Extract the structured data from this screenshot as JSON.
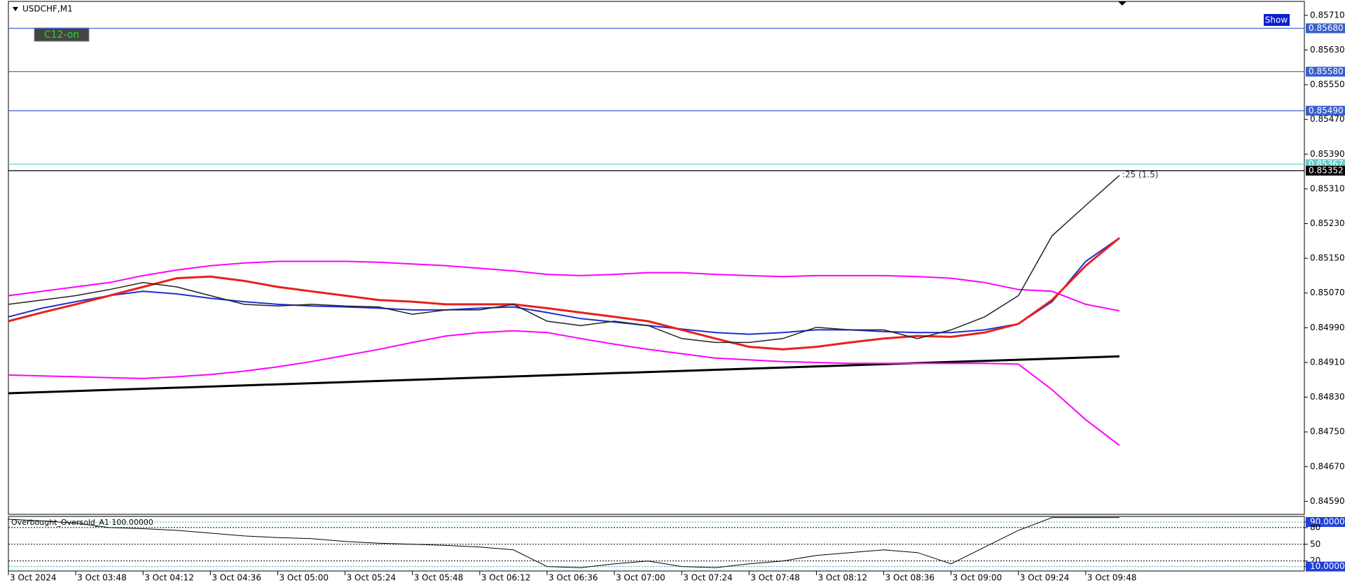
{
  "ui": {
    "button_c12": "C12-on",
    "button_show": "Show"
  },
  "chart_data": [
    {
      "type": "line",
      "title": "USDCHF,M1",
      "categories": [
        "3 Oct 2024",
        null,
        "3 Oct 03:48",
        null,
        "3 Oct 04:12",
        null,
        "3 Oct 04:36",
        null,
        "3 Oct 05:00",
        null,
        "3 Oct 05:24",
        null,
        "3 Oct 05:48",
        null,
        "3 Oct 06:12",
        null,
        "3 Oct 06:36",
        null,
        "3 Oct 07:00",
        null,
        "3 Oct 07:24",
        null,
        "3 Oct 07:48",
        null,
        "3 Oct 08:12",
        null,
        "3 Oct 08:36",
        null,
        "3 Oct 09:00",
        null,
        "3 Oct 09:24",
        null,
        "3 Oct 09:48",
        null
      ],
      "ylim": [
        0.8456,
        0.85742
      ],
      "yticks": [
        {
          "value": 0.8571,
          "label": "0.85710"
        },
        {
          "value": 0.8563,
          "label": "0.85630"
        },
        {
          "value": 0.8555,
          "label": "0.85550"
        },
        {
          "value": 0.8547,
          "label": "0.85470"
        },
        {
          "value": 0.8539,
          "label": "0.85390"
        },
        {
          "value": 0.8531,
          "label": "0.85310"
        },
        {
          "value": 0.8523,
          "label": "0.85230"
        },
        {
          "value": 0.8515,
          "label": "0.85150"
        },
        {
          "value": 0.8507,
          "label": "0.85070"
        },
        {
          "value": 0.8499,
          "label": "0.84990"
        },
        {
          "value": 0.8491,
          "label": "0.84910"
        },
        {
          "value": 0.8483,
          "label": "0.84830"
        },
        {
          "value": 0.8475,
          "label": "0.84750"
        },
        {
          "value": 0.8467,
          "label": "0.84670"
        },
        {
          "value": 0.8459,
          "label": "0.84590"
        }
      ],
      "levels": [
        {
          "value": 0.8568,
          "label": "0.85680",
          "color": "#3a5fcd"
        },
        {
          "value": 0.8558,
          "label": "0.85580",
          "color": "#3a5fcd"
        },
        {
          "value": 0.8549,
          "label": "0.85490",
          "color": "#3a5fcd"
        },
        {
          "value": 0.85367,
          "label": "0.85367",
          "color": "#66cccc"
        },
        {
          "value": 0.85352,
          "label": "0.85352",
          "color": "#000000"
        }
      ],
      "annotation": ":25 (1.5)",
      "trend_line": [
        0.84839,
        0.84924
      ],
      "series": [
        {
          "color": "#ff00ff",
          "width": 2,
          "values": [
            0.85064,
            0.85074,
            0.85084,
            0.85094,
            0.8511,
            0.85123,
            0.85133,
            0.85139,
            0.85143,
            0.85143,
            0.85143,
            0.85141,
            0.85137,
            0.85133,
            0.85127,
            0.85121,
            0.85113,
            0.8511,
            0.85113,
            0.85117,
            0.85117,
            0.85113,
            0.8511,
            0.85108,
            0.8511,
            0.8511,
            0.8511,
            0.85108,
            0.85104,
            0.85094,
            0.85078,
            0.85074,
            0.85044,
            0.85029
          ]
        },
        {
          "color": "#ff00ff",
          "width": 2,
          "values": [
            0.84881,
            0.84879,
            0.84877,
            0.84875,
            0.84873,
            0.84877,
            0.84882,
            0.8489,
            0.849,
            0.84912,
            0.84926,
            0.8494,
            0.84956,
            0.84971,
            0.84979,
            0.84983,
            0.84979,
            0.84965,
            0.84952,
            0.8494,
            0.8493,
            0.8492,
            0.84916,
            0.84912,
            0.8491,
            0.84908,
            0.84908,
            0.84908,
            0.84908,
            0.84908,
            0.84906,
            0.84847,
            0.84778,
            0.84719
          ]
        },
        {
          "color": "#1f2fd0",
          "width": 2,
          "values": [
            0.85015,
            0.85035,
            0.8505,
            0.85064,
            0.85074,
            0.85068,
            0.85058,
            0.8505,
            0.85044,
            0.8504,
            0.85038,
            0.85035,
            0.85031,
            0.85031,
            0.85035,
            0.85038,
            0.85025,
            0.85011,
            0.85003,
            0.84995,
            0.84987,
            0.84979,
            0.84975,
            0.84979,
            0.84985,
            0.84985,
            0.84981,
            0.84979,
            0.84979,
            0.84985,
            0.84999,
            0.8505,
            0.85143,
            0.85197
          ]
        },
        {
          "color": "#e8201c",
          "width": 3,
          "values": [
            0.85005,
            0.85025,
            0.85044,
            0.85064,
            0.85084,
            0.85104,
            0.85108,
            0.85098,
            0.85084,
            0.85074,
            0.85064,
            0.85054,
            0.8505,
            0.85044,
            0.85044,
            0.85044,
            0.85035,
            0.85025,
            0.85015,
            0.85005,
            0.84985,
            0.84965,
            0.84946,
            0.8494,
            0.84946,
            0.84956,
            0.84965,
            0.84971,
            0.84969,
            0.84979,
            0.84999,
            0.85054,
            0.85133,
            0.85197
          ]
        },
        {
          "color": "#222222",
          "width": 1.5,
          "values": [
            0.85044,
            0.85054,
            0.85064,
            0.85078,
            0.85094,
            0.85084,
            0.85064,
            0.85044,
            0.8504,
            0.85044,
            0.8504,
            0.85038,
            0.85021,
            0.85031,
            0.85031,
            0.85044,
            0.85005,
            0.84995,
            0.85005,
            0.84995,
            0.84965,
            0.84956,
            0.84956,
            0.84965,
            0.84991,
            0.84985,
            0.84985,
            0.84965,
            0.84985,
            0.85015,
            0.85064,
            0.85202,
            0.85272,
            0.85341
          ]
        }
      ]
    },
    {
      "type": "line",
      "title": "Overbought_Oversold_A1 100.00000",
      "ylim": [
        2,
        100
      ],
      "yticks": [
        {
          "value": 90,
          "label": "90.00000"
        },
        80,
        50,
        20,
        {
          "value": 10,
          "label": "10.00000"
        }
      ],
      "series": [
        {
          "color": "#000000",
          "width": 1,
          "values": [
            95,
            92,
            88,
            80,
            78,
            75,
            70,
            65,
            62,
            60,
            55,
            52,
            50,
            48,
            45,
            40,
            10,
            8,
            15,
            20,
            10,
            8,
            15,
            20,
            30,
            35,
            40,
            35,
            15,
            45,
            75,
            98,
            98,
            98
          ]
        }
      ]
    }
  ]
}
